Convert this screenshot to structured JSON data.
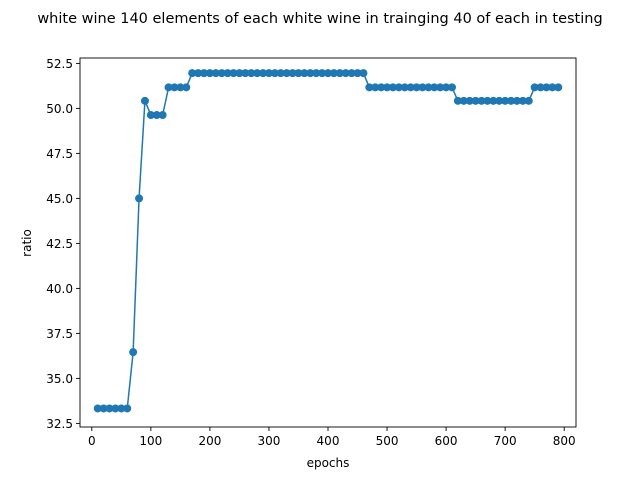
{
  "chart_data": {
    "type": "line",
    "title": "white wine 140 elements of each white wine in trainging 40 of each in testing",
    "xlabel": "epochs",
    "ylabel": "ratio",
    "xlim": [
      -20,
      820
    ],
    "ylim": [
      32.3,
      52.8
    ],
    "xticks": [
      0,
      100,
      200,
      300,
      400,
      500,
      600,
      700,
      800
    ],
    "yticks": [
      32.5,
      35.0,
      37.5,
      40.0,
      42.5,
      45.0,
      47.5,
      50.0,
      52.5
    ],
    "ytick_labels": [
      "32.5",
      "35.0",
      "37.5",
      "40.0",
      "42.5",
      "45.0",
      "47.5",
      "50.0",
      "52.5"
    ],
    "grid": false,
    "color": "#1f77b4",
    "marker": "circle",
    "series": [
      {
        "x": [
          10,
          20,
          30,
          40,
          50,
          60,
          70,
          80,
          90,
          100,
          110,
          120,
          130,
          140,
          150,
          160,
          170,
          180,
          190,
          200,
          210,
          220,
          230,
          240,
          250,
          260,
          270,
          280,
          290,
          300,
          310,
          320,
          330,
          340,
          350,
          360,
          370,
          380,
          390,
          400,
          410,
          420,
          430,
          440,
          450,
          460,
          470,
          480,
          490,
          500,
          510,
          520,
          530,
          540,
          550,
          560,
          570,
          580,
          590,
          600,
          610,
          620,
          630,
          640,
          650,
          660,
          670,
          680,
          690,
          700,
          710,
          720,
          730,
          740,
          750,
          760,
          770,
          780,
          790
        ],
        "y": [
          33.33,
          33.33,
          33.33,
          33.33,
          33.33,
          33.33,
          36.46,
          45.0,
          50.42,
          49.63,
          49.63,
          49.63,
          51.17,
          51.17,
          51.17,
          51.17,
          51.96,
          51.96,
          51.96,
          51.96,
          51.96,
          51.96,
          51.96,
          51.96,
          51.96,
          51.96,
          51.96,
          51.96,
          51.96,
          51.96,
          51.96,
          51.96,
          51.96,
          51.96,
          51.96,
          51.96,
          51.96,
          51.96,
          51.96,
          51.96,
          51.96,
          51.96,
          51.96,
          51.96,
          51.96,
          51.96,
          51.17,
          51.17,
          51.17,
          51.17,
          51.17,
          51.17,
          51.17,
          51.17,
          51.17,
          51.17,
          51.17,
          51.17,
          51.17,
          51.17,
          51.17,
          50.42,
          50.42,
          50.42,
          50.42,
          50.42,
          50.42,
          50.42,
          50.42,
          50.42,
          50.42,
          50.42,
          50.42,
          50.42,
          51.17,
          51.17,
          51.17,
          51.17,
          51.17
        ]
      }
    ]
  }
}
